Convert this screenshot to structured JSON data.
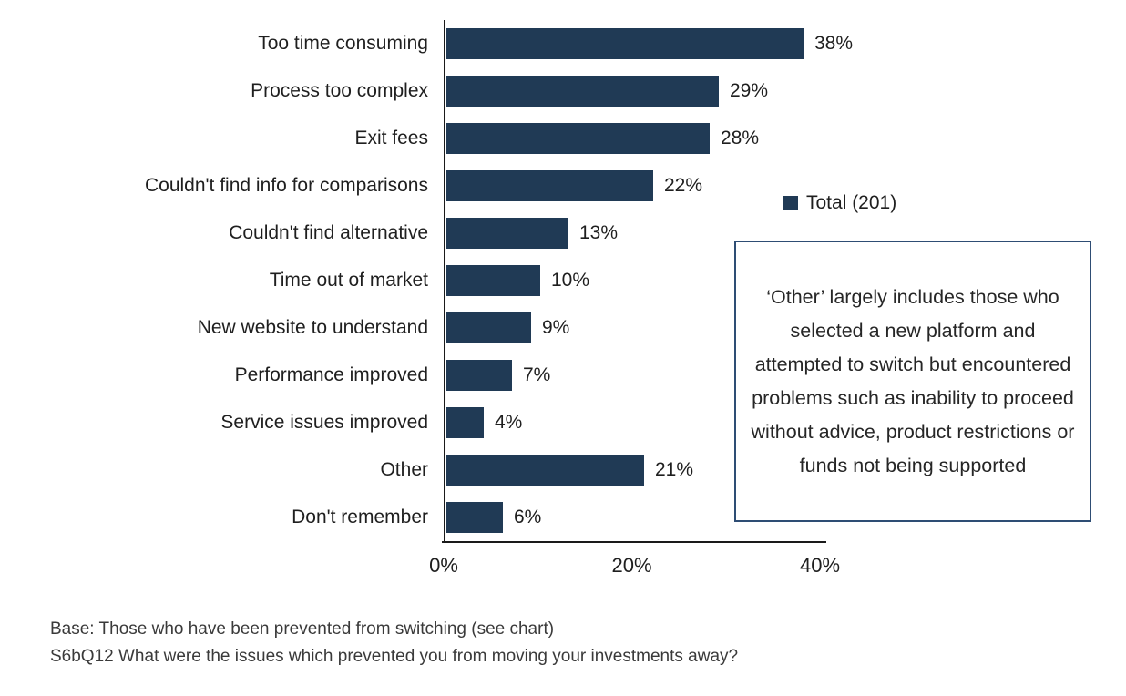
{
  "colors": {
    "bar": "#203a55",
    "axis": "#1a1a1a",
    "note_border": "#2e4d74",
    "text": "#1f1f1f",
    "footer_text": "#3a3a3a"
  },
  "chart_data": {
    "type": "bar",
    "orientation": "horizontal",
    "title": "",
    "xlabel": "",
    "ylabel": "",
    "xlim": [
      0,
      40
    ],
    "grid": false,
    "categories": [
      "Too time consuming",
      "Process too complex",
      "Exit fees",
      "Couldn't find info for comparisons",
      "Couldn't find alternative",
      "Time out of market",
      "New website to understand",
      "Performance improved",
      "Service issues improved",
      "Other",
      "Don't remember"
    ],
    "series": [
      {
        "name": "Total (201)",
        "values": [
          38,
          29,
          28,
          22,
          13,
          10,
          9,
          7,
          4,
          21,
          6
        ]
      }
    ],
    "value_labels": [
      "38%",
      "29%",
      "28%",
      "22%",
      "13%",
      "10%",
      "9%",
      "7%",
      "4%",
      "21%",
      "6%"
    ],
    "x_ticks": [
      "0%",
      "20%",
      "40%"
    ],
    "legend_position": "right"
  },
  "legend": {
    "label": "Total (201)"
  },
  "note_box": {
    "text": "‘Other’ largely includes those who selected a new platform and attempted to switch but encountered problems such as inability to proceed without advice, product restrictions or funds not being supported"
  },
  "footer": {
    "line1": "Base: Those who have been prevented from switching (see chart)",
    "line2": "S6bQ12 What were the issues which prevented you from moving your investments away?"
  }
}
